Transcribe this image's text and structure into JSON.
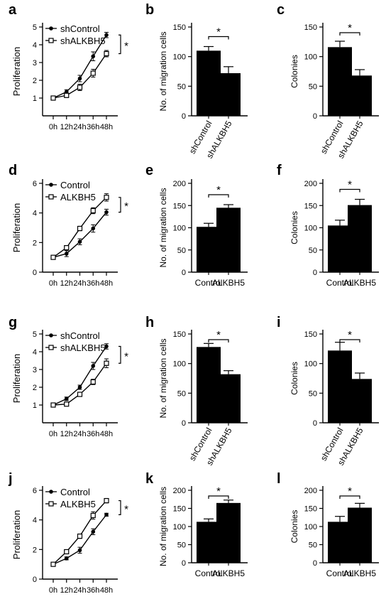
{
  "chart_data": [
    {
      "panel": "a",
      "type": "line",
      "ylabel": "Proliferation",
      "categories": [
        "0h",
        "12h",
        "24h",
        "36h",
        "48h"
      ],
      "ylim": [
        0,
        5
      ],
      "yticks": [
        1,
        2,
        3,
        4,
        5
      ],
      "series": [
        {
          "name": "shControl",
          "marker": "filled",
          "values": [
            1.0,
            1.35,
            2.1,
            3.35,
            4.55
          ],
          "errors": [
            0.06,
            0.12,
            0.18,
            0.25,
            0.15
          ]
        },
        {
          "name": "shALKBH5",
          "marker": "open",
          "values": [
            1.0,
            1.15,
            1.6,
            2.4,
            3.5
          ],
          "errors": [
            0.06,
            0.12,
            0.18,
            0.22,
            0.18
          ]
        }
      ],
      "sig": "*"
    },
    {
      "panel": "b",
      "type": "bar",
      "ylabel": "No. of migration cells",
      "categories": [
        "shControl",
        "shALKBH5"
      ],
      "values": [
        110,
        72
      ],
      "errors": [
        7,
        11
      ],
      "ylim": [
        0,
        150
      ],
      "yticks": [
        0,
        50,
        100,
        150
      ],
      "rotated": true,
      "sig": "*"
    },
    {
      "panel": "c",
      "type": "bar",
      "ylabel": "Colonies",
      "categories": [
        "shControl",
        "shALKBH5"
      ],
      "values": [
        116,
        68
      ],
      "errors": [
        10,
        10
      ],
      "ylim": [
        0,
        150
      ],
      "yticks": [
        0,
        50,
        100,
        150
      ],
      "rotated": true,
      "sig": "*"
    },
    {
      "panel": "d",
      "type": "line",
      "ylabel": "Proliferation",
      "categories": [
        "0h",
        "12h",
        "24h",
        "36h",
        "48h"
      ],
      "ylim": [
        0,
        6
      ],
      "yticks": [
        0,
        2,
        4,
        6
      ],
      "series": [
        {
          "name": "Control",
          "marker": "filled",
          "values": [
            1.0,
            1.25,
            2.05,
            2.95,
            4.05
          ],
          "errors": [
            0.06,
            0.2,
            0.2,
            0.25,
            0.2
          ]
        },
        {
          "name": "ALKBH5",
          "marker": "open",
          "values": [
            1.0,
            1.65,
            2.95,
            4.15,
            5.05
          ],
          "errors": [
            0.06,
            0.15,
            0.15,
            0.2,
            0.25
          ]
        }
      ],
      "sig": "*"
    },
    {
      "panel": "e",
      "type": "bar",
      "ylabel": "No. of migration cells",
      "categories": [
        "Control",
        "ALKBH5"
      ],
      "values": [
        102,
        145
      ],
      "errors": [
        8,
        7
      ],
      "ylim": [
        0,
        200
      ],
      "yticks": [
        0,
        50,
        100,
        150,
        200
      ],
      "rotated": false,
      "sig": "*"
    },
    {
      "panel": "f",
      "type": "bar",
      "ylabel": "Colonies",
      "categories": [
        "Control",
        "ALKBH5"
      ],
      "values": [
        105,
        151
      ],
      "errors": [
        12,
        13
      ],
      "ylim": [
        0,
        200
      ],
      "yticks": [
        0,
        50,
        100,
        150,
        200
      ],
      "rotated": false,
      "sig": "*"
    },
    {
      "panel": "g",
      "type": "line",
      "ylabel": "Proliferation",
      "categories": [
        "0h",
        "12h",
        "24h",
        "36h",
        "48h"
      ],
      "ylim": [
        0,
        5
      ],
      "yticks": [
        1,
        2,
        3,
        4,
        5
      ],
      "series": [
        {
          "name": "shControl",
          "marker": "filled",
          "values": [
            1.0,
            1.35,
            2.0,
            3.2,
            4.3
          ],
          "errors": [
            0.05,
            0.1,
            0.12,
            0.2,
            0.15
          ]
        },
        {
          "name": "shALKBH5",
          "marker": "open",
          "values": [
            1.0,
            1.05,
            1.6,
            2.3,
            3.35
          ],
          "errors": [
            0.05,
            0.08,
            0.12,
            0.15,
            0.25
          ]
        }
      ],
      "sig": "*"
    },
    {
      "panel": "h",
      "type": "bar",
      "ylabel": "No. of migration cells",
      "categories": [
        "shControl",
        "shALKBH5"
      ],
      "values": [
        128,
        82
      ],
      "errors": [
        6,
        6
      ],
      "ylim": [
        0,
        150
      ],
      "yticks": [
        0,
        50,
        100,
        150
      ],
      "rotated": true,
      "sig": "*"
    },
    {
      "panel": "i",
      "type": "bar",
      "ylabel": "Colonies",
      "categories": [
        "shControl",
        "shALKBH5"
      ],
      "values": [
        122,
        74
      ],
      "errors": [
        14,
        10
      ],
      "ylim": [
        0,
        150
      ],
      "yticks": [
        0,
        50,
        100,
        150
      ],
      "rotated": true,
      "sig": "*"
    },
    {
      "panel": "j",
      "type": "line",
      "ylabel": "Proliferation",
      "categories": [
        "0h",
        "12h",
        "24h",
        "36h",
        "48h"
      ],
      "ylim": [
        0,
        6
      ],
      "yticks": [
        0,
        2,
        4,
        6
      ],
      "series": [
        {
          "name": "Control",
          "marker": "filled",
          "values": [
            1.0,
            1.4,
            1.95,
            3.2,
            4.35
          ],
          "errors": [
            0.05,
            0.1,
            0.2,
            0.2,
            0.1
          ]
        },
        {
          "name": "ALKBH5",
          "marker": "open",
          "values": [
            1.0,
            1.85,
            2.9,
            4.3,
            5.3
          ],
          "errors": [
            0.05,
            0.12,
            0.15,
            0.25,
            0.15
          ]
        }
      ],
      "sig": "*"
    },
    {
      "panel": "k",
      "type": "bar",
      "ylabel": "No. of migration cells",
      "categories": [
        "Control",
        "ALKBH5"
      ],
      "values": [
        113,
        165
      ],
      "errors": [
        8,
        8
      ],
      "ylim": [
        0,
        200
      ],
      "yticks": [
        0,
        50,
        100,
        150,
        200
      ],
      "rotated": false,
      "sig": "*"
    },
    {
      "panel": "l",
      "type": "bar",
      "ylabel": "Colonies",
      "categories": [
        "Control",
        "ALKBH5"
      ],
      "values": [
        113,
        152
      ],
      "errors": [
        15,
        12
      ],
      "ylim": [
        0,
        200
      ],
      "yticks": [
        0,
        50,
        100,
        150,
        200
      ],
      "rotated": false,
      "sig": "*"
    }
  ]
}
